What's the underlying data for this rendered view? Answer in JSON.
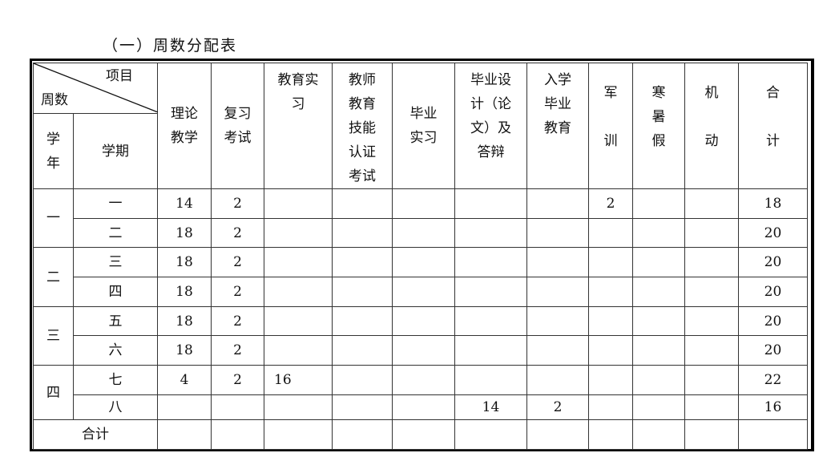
{
  "title": "（一）周数分配表",
  "header": {
    "corner_top": "项目",
    "corner_bottom": "周数",
    "year": "学\n年",
    "term": "学期",
    "columns": [
      "理论\n教学",
      "复习\n考试",
      "教育实\n习",
      "教师\n教育\n技能\n认证\n考试",
      "毕业\n实习",
      "毕业设\n计（论\n文）及\n答辩",
      "入学\n毕业\n教育",
      "军\n\n训",
      "寒\n暑\n假",
      "机\n\n动",
      "合\n\n计"
    ]
  },
  "years": [
    "一",
    "二",
    "三",
    "四"
  ],
  "rows": [
    {
      "term": "一",
      "values": [
        "14",
        "2",
        "",
        "",
        "",
        "",
        "",
        "2",
        "",
        "",
        "18"
      ]
    },
    {
      "term": "二",
      "values": [
        "18",
        "2",
        "",
        "",
        "",
        "",
        "",
        "",
        "",
        "",
        "20"
      ]
    },
    {
      "term": "三",
      "values": [
        "18",
        "2",
        "",
        "",
        "",
        "",
        "",
        "",
        "",
        "",
        "20"
      ]
    },
    {
      "term": "四",
      "values": [
        "18",
        "2",
        "",
        "",
        "",
        "",
        "",
        "",
        "",
        "",
        "20"
      ]
    },
    {
      "term": "五",
      "values": [
        "18",
        "2",
        "",
        "",
        "",
        "",
        "",
        "",
        "",
        "",
        "20"
      ]
    },
    {
      "term": "六",
      "values": [
        "18",
        "2",
        "",
        "",
        "",
        "",
        "",
        "",
        "",
        "",
        "20"
      ]
    },
    {
      "term": "七",
      "values": [
        "4",
        "2",
        "16",
        "",
        "",
        "",
        "",
        "",
        "",
        "",
        "22"
      ]
    },
    {
      "term": "八",
      "values": [
        "",
        "",
        "",
        "",
        "",
        "14",
        "2",
        "",
        "",
        "",
        "16"
      ]
    }
  ],
  "total_label": "合计"
}
